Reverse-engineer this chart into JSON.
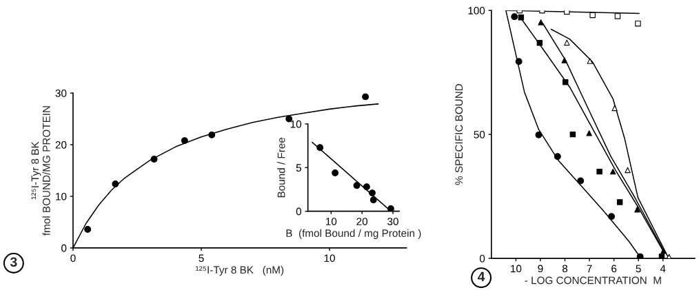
{
  "chart_data": [
    {
      "type": "scatter",
      "xlabel": "¹²⁵I-Tyr 8 BK   (nM)",
      "ylabel": "¹²⁵I-Tyr 8 BK\nfmol BOUND/MG PROTEIN",
      "xlim": [
        0,
        13
      ],
      "ylim": [
        0,
        30
      ],
      "xticks": [
        0,
        5,
        10
      ],
      "yticks": [
        0,
        10,
        20,
        30
      ],
      "grid": false,
      "legend": false,
      "annotations": [
        "3"
      ],
      "series": [
        {
          "type": "scatter",
          "color": "#000000",
          "marker": "circle",
          "x": [
            0.57,
            1.65,
            3.16,
            4.35,
            5.41,
            8.42,
            11.4
          ],
          "values": [
            3.6,
            12.4,
            17.2,
            20.8,
            21.9,
            25.0,
            29.3
          ]
        },
        {
          "type": "line",
          "color": "#000000",
          "marker": "none",
          "x": [
            0,
            0.5,
            1,
            1.5,
            2,
            3,
            4,
            5,
            6,
            7,
            8,
            9,
            10,
            11,
            11.9
          ],
          "values": [
            0,
            4.7,
            8.3,
            11.2,
            13.5,
            17.0,
            19.6,
            21.5,
            23.0,
            24.3,
            25.3,
            26.1,
            26.9,
            27.5,
            27.9
          ]
        }
      ]
    },
    {
      "type": "scatter",
      "xlabel": "B  (fmol Bound / mg Protein )",
      "ylabel": "Bound / Free",
      "xlim": [
        2.5,
        32
      ],
      "ylim": [
        0,
        10
      ],
      "xticks": [
        10,
        20,
        30
      ],
      "yticks": [
        0,
        5,
        10
      ],
      "grid": false,
      "legend": false,
      "series": [
        {
          "type": "scatter",
          "color": "#000000",
          "marker": "circle",
          "x": [
            6.4,
            11.3,
            18.3,
            21.5,
            23.3,
            23.7,
            29.3
          ],
          "values": [
            7.3,
            4.4,
            2.95,
            2.8,
            2.1,
            1.3,
            0.3
          ]
        },
        {
          "type": "line",
          "color": "#000000",
          "marker": "none",
          "x": [
            3.9,
            28.7
          ],
          "values": [
            7.9,
            0.2
          ]
        }
      ]
    },
    {
      "type": "scatter",
      "xlabel": "- LOG CONCENTRATION  M",
      "ylabel": "% SPECIFIC BOUND",
      "xlim": [
        11,
        2.7
      ],
      "ylim": [
        0,
        100
      ],
      "xticks": [
        10,
        9,
        8,
        7,
        6,
        5,
        4
      ],
      "yticks": [
        0,
        50,
        100
      ],
      "grid": false,
      "legend": false,
      "annotations": [
        "4"
      ],
      "series": [
        {
          "type": "scatter",
          "color": "#ffffff",
          "marker": "square",
          "x": [
            9.85,
            8.93,
            7.92,
            6.87,
            5.85,
            5.02
          ],
          "values": [
            100,
            100,
            99.5,
            98.1,
            97.7,
            94.7
          ]
        },
        {
          "type": "line",
          "color": "#000000",
          "marker": "none",
          "x": [
            10.41,
            4.97
          ],
          "values": [
            100,
            98.8
          ]
        },
        {
          "type": "scatter",
          "color": "#000000",
          "marker": "circle",
          "x": [
            10.06,
            9.88,
            9.07,
            8.3,
            7.36,
            6.1,
            4.93
          ],
          "values": [
            97.5,
            79.4,
            49.8,
            41.1,
            31.3,
            16.9,
            0.7
          ]
        },
        {
          "type": "line",
          "color": "#000000",
          "marker": "none",
          "x": [
            10.41,
            9.65,
            9.07,
            8.26,
            7.33,
            6.41,
            5.39,
            4.93
          ],
          "values": [
            100,
            67,
            52,
            39.4,
            29.2,
            19,
            6.9,
            0.5
          ]
        },
        {
          "type": "scatter",
          "color": "#000000",
          "marker": "square",
          "x": [
            9.79,
            9.03,
            7.98,
            7.68,
            6.59,
            5.76,
            4.05
          ],
          "values": [
            97.2,
            86.9,
            71.1,
            50,
            35,
            22.7,
            0.7
          ]
        },
        {
          "type": "line",
          "color": "#000000",
          "marker": "none",
          "x": [
            9.79,
            8.72,
            7.8,
            6.87,
            5.94,
            5.02,
            3.95
          ],
          "values": [
            96.8,
            82,
            69,
            52.3,
            35.6,
            20.8,
            2.3
          ]
        },
        {
          "type": "scatter",
          "color": "#000000",
          "marker": "triangle",
          "x": [
            8.98,
            8.02,
            7.01,
            6.04,
            5.05,
            3.98
          ],
          "values": [
            95.2,
            79.9,
            50.5,
            35,
            19.7,
            3.0
          ]
        },
        {
          "type": "line",
          "color": "#000000",
          "marker": "none",
          "x": [
            8.91,
            7.98,
            7.06,
            6.13,
            5.2,
            3.95
          ],
          "values": [
            94.9,
            80,
            60.6,
            41.2,
            25.5,
            2.8
          ]
        },
        {
          "type": "scatter",
          "color": "#ffffff",
          "marker": "triangle",
          "x": [
            7.92,
            6.98,
            5.97,
            5.44,
            3.75
          ],
          "values": [
            87,
            79.6,
            60.6,
            35.6,
            0.6
          ]
        },
        {
          "type": "line",
          "color": "#000000",
          "marker": "none",
          "x": [
            8.56,
            7.8,
            6.87,
            6.04,
            5.57,
            5.02,
            3.81
          ],
          "values": [
            92.4,
            88.4,
            79.2,
            64.4,
            48.6,
            24.5,
            0.9
          ]
        }
      ]
    }
  ]
}
